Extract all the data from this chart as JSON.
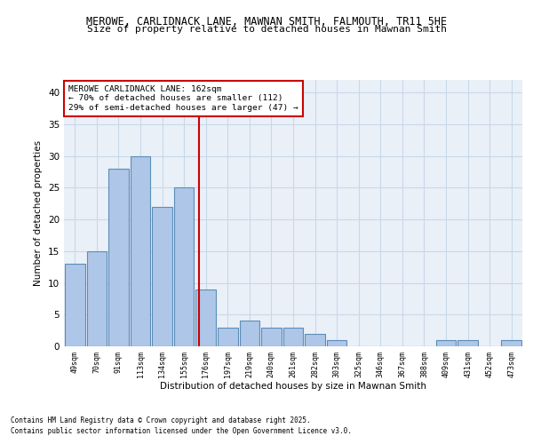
{
  "title1": "MEROWE, CARLIDNACK LANE, MAWNAN SMITH, FALMOUTH, TR11 5HE",
  "title2": "Size of property relative to detached houses in Mawnan Smith",
  "xlabel": "Distribution of detached houses by size in Mawnan Smith",
  "ylabel": "Number of detached properties",
  "categories": [
    "49sqm",
    "70sqm",
    "91sqm",
    "113sqm",
    "134sqm",
    "155sqm",
    "176sqm",
    "197sqm",
    "219sqm",
    "240sqm",
    "261sqm",
    "282sqm",
    "303sqm",
    "325sqm",
    "346sqm",
    "367sqm",
    "388sqm",
    "409sqm",
    "431sqm",
    "452sqm",
    "473sqm"
  ],
  "values": [
    13,
    15,
    28,
    30,
    22,
    25,
    9,
    3,
    4,
    3,
    3,
    2,
    1,
    0,
    0,
    0,
    0,
    1,
    1,
    0,
    1
  ],
  "bar_color": "#aec6e8",
  "bar_edgecolor": "#5b8db8",
  "vline_x": 5.68,
  "vline_color": "#cc0000",
  "annotation_text": "MEROWE CARLIDNACK LANE: 162sqm\n← 70% of detached houses are smaller (112)\n29% of semi-detached houses are larger (47) →",
  "annotation_box_edgecolor": "#cc0000",
  "ylim": [
    0,
    42
  ],
  "yticks": [
    0,
    5,
    10,
    15,
    20,
    25,
    30,
    35,
    40
  ],
  "grid_color": "#c8d8e8",
  "bg_color": "#eaf0f8",
  "footer1": "Contains HM Land Registry data © Crown copyright and database right 2025.",
  "footer2": "Contains public sector information licensed under the Open Government Licence v3.0.",
  "title1_fontsize": 8.5,
  "title2_fontsize": 8.0,
  "bar_width": 0.92
}
